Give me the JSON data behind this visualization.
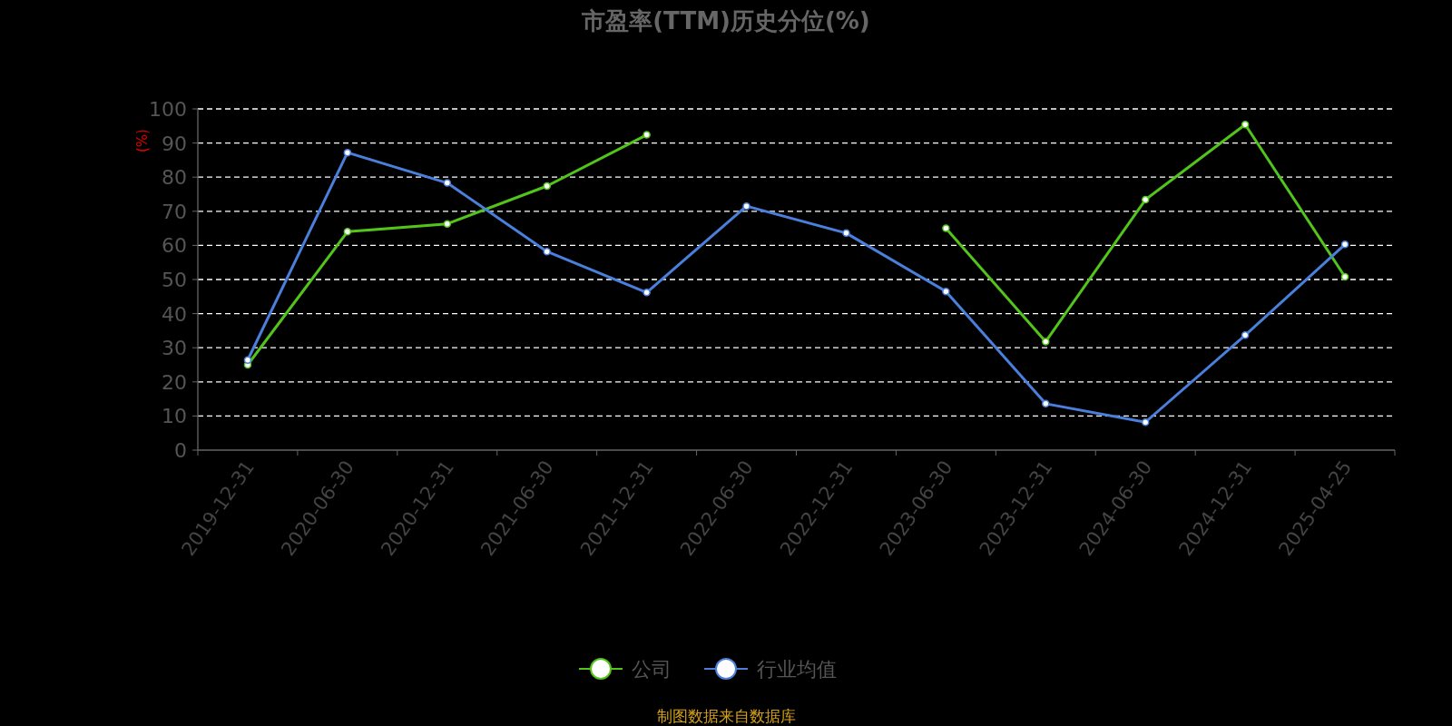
{
  "chart_data": {
    "type": "line",
    "title": "市盈率(TTM)历史分位(%)",
    "ylabel": "(%)",
    "categories": [
      "2019-12-31",
      "2020-06-30",
      "2020-12-31",
      "2021-06-30",
      "2021-12-31",
      "2022-06-30",
      "2022-12-31",
      "2023-06-30",
      "2023-12-31",
      "2024-06-30",
      "2024-12-31",
      "2025-04-25"
    ],
    "series": [
      {
        "name": "公司",
        "color": "#52c41a",
        "values": [
          25,
          64,
          66.3,
          77.4,
          92.4,
          null,
          null,
          65,
          31.8,
          73.4,
          95.4,
          50.8
        ]
      },
      {
        "name": "行业均值",
        "color": "#4a7fdc",
        "values": [
          26.4,
          87.2,
          78.3,
          58.2,
          46.2,
          71.5,
          63.6,
          46.5,
          13.6,
          8.2,
          33.7,
          60.3
        ]
      }
    ],
    "ylim": [
      0,
      100
    ],
    "yticks": [
      0,
      10,
      20,
      30,
      40,
      50,
      60,
      70,
      80,
      90,
      100
    ],
    "grid": "y",
    "legend": "bottom",
    "marker": "circle",
    "annotations": [
      "制图数据来自数据库"
    ]
  }
}
